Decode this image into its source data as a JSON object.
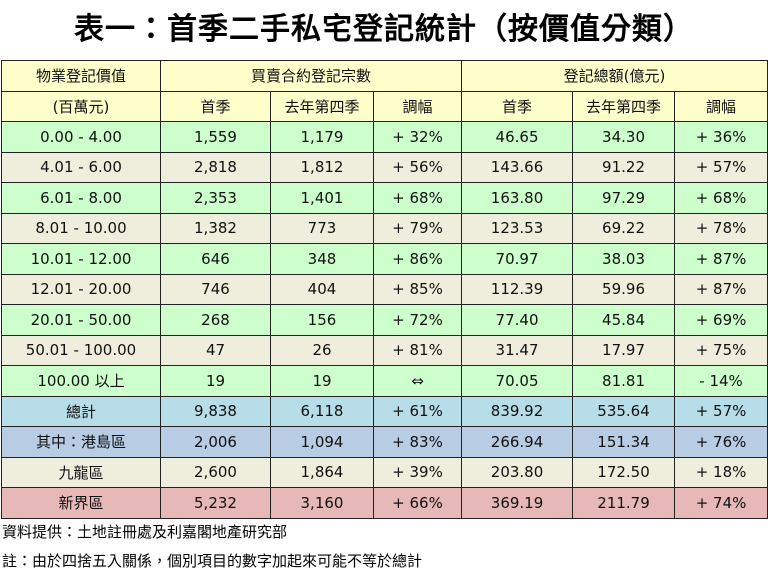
{
  "title": "表一：首季二手私宅登記統計（按價值分類）",
  "table": {
    "header": [
      [
        "物業登記價值",
        "買賣合約登記宗數",
        "登記總額(億元)"
      ],
      [
        "(百萬元)",
        "首季",
        "去年第四季",
        "調幅",
        "首季",
        "去年第四季",
        "調幅"
      ]
    ],
    "rows": [
      [
        "0.00 - 4.00",
        "1,559",
        "1,179",
        "+ 32%",
        "46.65",
        "34.30",
        "+ 36%"
      ],
      [
        "4.01 - 6.00",
        "2,818",
        "1,812",
        "+ 56%",
        "143.66",
        "91.22",
        "+ 57%"
      ],
      [
        "6.01 - 8.00",
        "2,353",
        "1,401",
        "+ 68%",
        "163.80",
        "97.29",
        "+ 68%"
      ],
      [
        "8.01 - 10.00",
        "1,382",
        "773",
        "+ 79%",
        "123.53",
        "69.22",
        "+ 78%"
      ],
      [
        "10.01 - 12.00",
        "646",
        "348",
        "+ 86%",
        "70.97",
        "38.03",
        "+ 87%"
      ],
      [
        "12.01 - 20.00",
        "746",
        "404",
        "+ 85%",
        "112.39",
        "59.96",
        "+ 87%"
      ],
      [
        "20.01 - 50.00",
        "268",
        "156",
        "+ 72%",
        "77.40",
        "45.84",
        "+ 69%"
      ],
      [
        "50.01 - 100.00",
        "47",
        "26",
        "+ 81%",
        "31.47",
        "17.97",
        "+ 75%"
      ],
      [
        "100.00 以上",
        "19",
        "19",
        "⇔",
        "70.05",
        "81.81",
        "- 14%"
      ],
      [
        "總計",
        "9,838",
        "6,118",
        "+ 61%",
        "839.92",
        "535.64",
        "+ 57%"
      ],
      [
        "其中：港島區",
        "2,006",
        "1,094",
        "+ 83%",
        "266.94",
        "151.34",
        "+ 76%"
      ],
      [
        "九龍區",
        "2,600",
        "1,864",
        "+ 39%",
        "203.80",
        "172.50",
        "+ 18%"
      ],
      [
        "新界區",
        "5,232",
        "3,160",
        "+ 66%",
        "369.19",
        "211.79",
        "+ 74%"
      ]
    ]
  },
  "notes": [
    "資料提供：土地註冊處及利嘉閣地產研究部",
    "註：由於四捨五入關係，個別項目的數字加起來可能不等於總計"
  ]
}
